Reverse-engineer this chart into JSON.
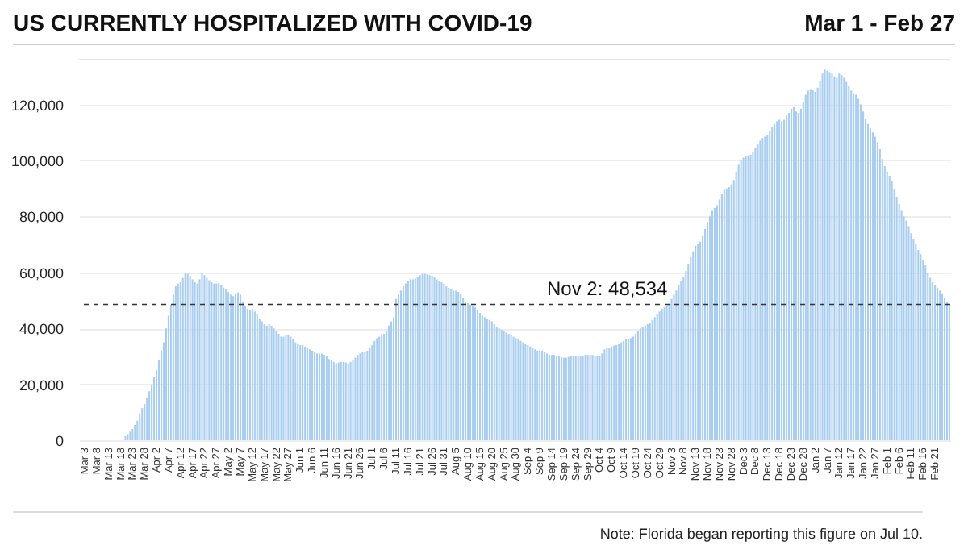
{
  "chart_data": {
    "type": "bar",
    "title": "US CURRENTLY HOSPITALIZED WITH COVID-19",
    "subtitle": "Mar 1 - Feb 27",
    "categories": [
      null,
      null,
      "Mar 3",
      null,
      null,
      null,
      null,
      "Mar 8",
      null,
      null,
      null,
      null,
      "Mar 13",
      null,
      null,
      null,
      null,
      "Mar 18",
      null,
      null,
      null,
      null,
      "Mar 23",
      null,
      null,
      null,
      null,
      "Mar 28",
      null,
      null,
      null,
      null,
      "Apr 2",
      null,
      null,
      null,
      null,
      "Apr 7",
      null,
      null,
      null,
      null,
      "Apr 12",
      null,
      null,
      null,
      null,
      "Apr 17",
      null,
      null,
      null,
      null,
      "Apr 22",
      null,
      null,
      null,
      null,
      "Apr 27",
      null,
      null,
      null,
      null,
      "May 2",
      null,
      null,
      null,
      null,
      "May 7",
      null,
      null,
      null,
      null,
      "May 12",
      null,
      null,
      null,
      null,
      "May 17",
      null,
      null,
      null,
      null,
      "May 22",
      null,
      null,
      null,
      null,
      "May 27",
      null,
      null,
      null,
      null,
      "Jun 1",
      null,
      null,
      null,
      null,
      "Jun 6",
      null,
      null,
      null,
      null,
      "Jun 11",
      null,
      null,
      null,
      null,
      "Jun 16",
      null,
      null,
      null,
      null,
      "Jun 21",
      null,
      null,
      null,
      null,
      "Jun 26",
      null,
      null,
      null,
      null,
      "Jul 1",
      null,
      null,
      null,
      null,
      "Jul 6",
      null,
      null,
      null,
      null,
      "Jul 11",
      null,
      null,
      null,
      null,
      "Jul 16",
      null,
      null,
      null,
      null,
      "Jul 21",
      null,
      null,
      null,
      null,
      "Jul 26",
      null,
      null,
      null,
      null,
      "Jul 31",
      null,
      null,
      null,
      null,
      "Aug 5",
      null,
      null,
      null,
      null,
      "Aug 10",
      null,
      null,
      null,
      null,
      "Aug 15",
      null,
      null,
      null,
      null,
      "Aug 20",
      null,
      null,
      null,
      null,
      "Aug 25",
      null,
      null,
      null,
      null,
      "Aug 30",
      null,
      null,
      null,
      null,
      "Sep 4",
      null,
      null,
      null,
      null,
      "Sep 9",
      null,
      null,
      null,
      null,
      "Sep 14",
      null,
      null,
      null,
      null,
      "Sep 19",
      null,
      null,
      null,
      null,
      "Sep 24",
      null,
      null,
      null,
      null,
      "Sep 29",
      null,
      null,
      null,
      null,
      "Oct 4",
      null,
      null,
      null,
      null,
      "Oct 9",
      null,
      null,
      null,
      null,
      "Oct 14",
      null,
      null,
      null,
      null,
      "Oct 19",
      null,
      null,
      null,
      null,
      "Oct 24",
      null,
      null,
      null,
      null,
      "Oct 29",
      null,
      null,
      null,
      null,
      "Nov 3",
      null,
      null,
      null,
      null,
      "Nov 8",
      null,
      null,
      null,
      null,
      "Nov 13",
      null,
      null,
      null,
      null,
      "Nov 18",
      null,
      null,
      null,
      null,
      "Nov 23",
      null,
      null,
      null,
      null,
      "Nov 28",
      null,
      null,
      null,
      null,
      "Dec 3",
      null,
      null,
      null,
      null,
      "Dec 8",
      null,
      null,
      null,
      null,
      "Dec 13",
      null,
      null,
      null,
      null,
      "Dec 18",
      null,
      null,
      null,
      null,
      "Dec 23",
      null,
      null,
      null,
      null,
      "Dec 28",
      null,
      null,
      null,
      null,
      "Jan 2",
      null,
      null,
      null,
      null,
      "Jan 7",
      null,
      null,
      null,
      null,
      "Jan 12",
      null,
      null,
      null,
      null,
      "Jan 17",
      null,
      null,
      null,
      null,
      "Jan 22",
      null,
      null,
      null,
      null,
      "Jan 27",
      null,
      null,
      null,
      null,
      "Feb 1",
      null,
      null,
      null,
      null,
      "Feb 6",
      null,
      null,
      null,
      null,
      "Feb 11",
      null,
      null,
      null,
      null,
      "Feb 16",
      null,
      null,
      null,
      null,
      "Feb 21",
      null,
      null,
      null,
      null,
      null,
      null
    ],
    "values": [
      null,
      null,
      null,
      null,
      null,
      null,
      null,
      null,
      null,
      null,
      null,
      null,
      null,
      null,
      null,
      null,
      null,
      null,
      null,
      1500,
      2200,
      3000,
      4000,
      5500,
      7000,
      9500,
      11500,
      13000,
      15000,
      17500,
      20000,
      22500,
      25000,
      28500,
      32000,
      35000,
      40000,
      44500,
      48500,
      52000,
      55000,
      56000,
      56500,
      58000,
      59600,
      59500,
      58800,
      57500,
      56500,
      56000,
      57500,
      59600,
      59000,
      58000,
      57200,
      56500,
      56000,
      56000,
      56200,
      55500,
      54500,
      54000,
      53000,
      52000,
      51500,
      52500,
      52800,
      52000,
      49500,
      48000,
      47000,
      46500,
      47000,
      46000,
      45000,
      43500,
      42500,
      41500,
      41000,
      41500,
      41000,
      40000,
      39000,
      38000,
      37000,
      37000,
      37500,
      37800,
      37000,
      36000,
      35000,
      34500,
      34000,
      34000,
      33500,
      33000,
      32500,
      32000,
      31500,
      31000,
      31000,
      31000,
      30500,
      30000,
      29000,
      28500,
      28000,
      27500,
      27800,
      28000,
      28000,
      27800,
      27500,
      28000,
      28500,
      29500,
      30500,
      31000,
      31500,
      31500,
      32000,
      33000,
      34000,
      35500,
      36500,
      37000,
      37500,
      38000,
      39000,
      41000,
      42500,
      44000,
      50500,
      52000,
      53500,
      55000,
      56000,
      57000,
      57500,
      57500,
      57800,
      58500,
      59000,
      59500,
      59500,
      59300,
      59000,
      58800,
      58500,
      57500,
      57000,
      56500,
      56000,
      55000,
      54500,
      54000,
      53500,
      53500,
      53000,
      52500,
      51000,
      49500,
      49000,
      48500,
      48000,
      47500,
      46500,
      45500,
      44500,
      44000,
      43500,
      43000,
      42500,
      41500,
      40500,
      40000,
      39500,
      39000,
      38500,
      38000,
      37500,
      37000,
      36500,
      36000,
      35500,
      35000,
      34500,
      34000,
      33500,
      33000,
      32500,
      32000,
      32000,
      32000,
      31500,
      31000,
      30500,
      30500,
      30500,
      30000,
      30000,
      29700,
      29500,
      29500,
      29800,
      30000,
      30000,
      30000,
      30000,
      30000,
      30200,
      30500,
      30500,
      30500,
      30500,
      30300,
      30000,
      30000,
      31000,
      32500,
      33000,
      33000,
      33500,
      33800,
      34000,
      34500,
      35000,
      35500,
      36000,
      36200,
      36500,
      37000,
      38000,
      39000,
      40000,
      40500,
      41000,
      41500,
      42000,
      43000,
      44000,
      45000,
      46000,
      47000,
      47500,
      48000,
      48534,
      50500,
      52000,
      53500,
      55500,
      57000,
      58500,
      60500,
      63000,
      65500,
      67500,
      69500,
      70000,
      71000,
      73000,
      75500,
      78000,
      80000,
      82000,
      83000,
      84000,
      86000,
      88000,
      89500,
      90000,
      90500,
      91500,
      93000,
      96000,
      98500,
      100000,
      101000,
      101500,
      101500,
      102000,
      103000,
      104500,
      106000,
      107000,
      108000,
      108500,
      109000,
      110500,
      112000,
      113000,
      114000,
      114500,
      114000,
      114500,
      116000,
      117000,
      118500,
      119000,
      117500,
      117000,
      118500,
      121000,
      123500,
      125000,
      125500,
      125000,
      124500,
      126000,
      128500,
      131000,
      132500,
      132000,
      131500,
      131000,
      130000,
      129500,
      131000,
      130500,
      129500,
      128000,
      126500,
      125000,
      124000,
      123500,
      122000,
      120000,
      117500,
      115000,
      113000,
      111500,
      110000,
      108500,
      106500,
      104000,
      100500,
      98000,
      96000,
      94500,
      92500,
      90000,
      87000,
      84500,
      82000,
      80000,
      78500,
      76500,
      74000,
      72000,
      70000,
      68000,
      66500,
      64500,
      62500,
      60000,
      58000,
      56500,
      55500,
      54500,
      53500,
      52500,
      51000,
      49500,
      48500
    ],
    "color": "#a8cdf0",
    "ylim": [
      0,
      136000
    ],
    "yticks": [
      0,
      {
        "value": 20000,
        "label": "20,000"
      },
      {
        "value": 40000,
        "label": "40,000"
      },
      {
        "value": 60000,
        "label": "60,000"
      },
      {
        "value": 80000,
        "label": "80,000"
      },
      {
        "value": 100000,
        "label": "100,000"
      },
      {
        "value": 120000,
        "label": "120,000"
      }
    ],
    "grid": "y",
    "ref_lines": [
      {
        "axis": "y",
        "value": 48534,
        "label": "Nov 2: 48,534"
      }
    ],
    "annotations": [
      "Note: Florida began reporting this figure on Jul 10."
    ]
  }
}
